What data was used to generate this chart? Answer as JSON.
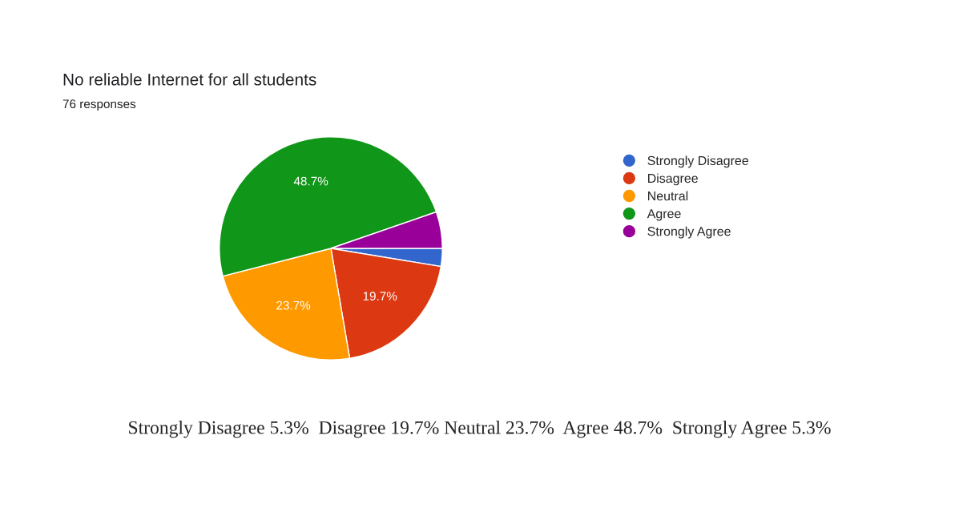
{
  "chart_data": {
    "type": "pie",
    "title": "No reliable Internet for all students",
    "subtitle": "76 responses",
    "categories": [
      "Strongly Disagree",
      "Disagree",
      "Neutral",
      "Agree",
      "Strongly Agree"
    ],
    "values": [
      2.6,
      19.7,
      23.7,
      48.7,
      5.3
    ],
    "colors": [
      "#3366cc",
      "#dc3912",
      "#ff9900",
      "#109618",
      "#990099"
    ],
    "value_labels": [
      null,
      "19.7%",
      "23.7%",
      "48.7%",
      null
    ],
    "legend": "right",
    "annotations": [
      "Strongly Disagree 5.3%  Disagree 19.7% Neutral 23.7%  Agree 48.7%  Strongly Agree 5.3%"
    ]
  }
}
